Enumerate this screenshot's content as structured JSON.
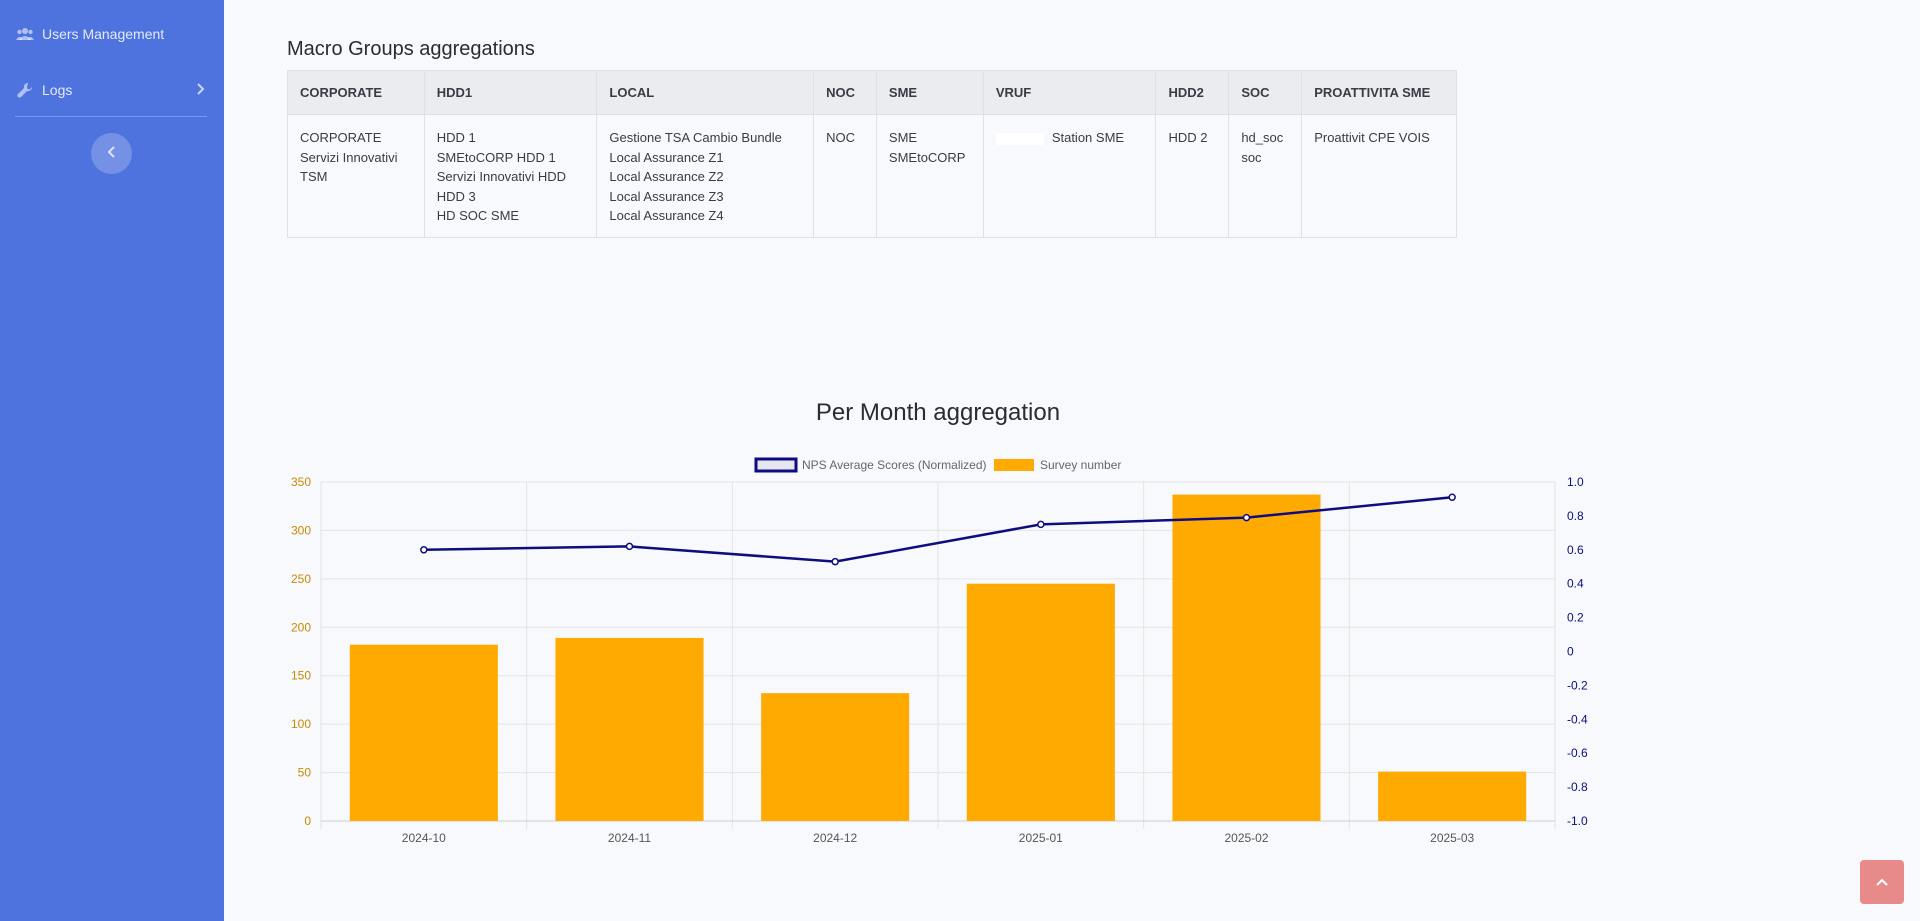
{
  "sidebar": {
    "items": [
      {
        "label": "Users Management",
        "icon": "users-icon"
      },
      {
        "label": "Logs",
        "icon": "wrench-icon"
      }
    ],
    "colors": {
      "background": "#4e73df"
    }
  },
  "macro_groups": {
    "title": "Macro Groups aggregations",
    "columns": [
      "CORPORATE",
      "HDD1",
      "LOCAL",
      "NOC",
      "SME",
      "VRUF",
      "HDD2",
      "SOC",
      "PROATTIVITA SME"
    ],
    "cells": [
      [
        "CORPORATE",
        "Servizi Innovativi",
        "TSM"
      ],
      [
        "HDD 1",
        "SMEtoCORP HDD 1",
        "Servizi Innovativi HDD",
        "HDD 3",
        "HD SOC SME"
      ],
      [
        "Gestione TSA Cambio Bundle",
        "Local Assurance Z1",
        "Local Assurance Z2",
        "Local Assurance Z3",
        "Local Assurance Z4"
      ],
      [
        "NOC"
      ],
      [
        "SME",
        "SMEtoCORP"
      ],
      [
        "Station SME"
      ],
      [
        "HDD 2"
      ],
      [
        "hd_soc",
        "soc"
      ],
      [
        "Proattivit CPE VOIS"
      ]
    ]
  },
  "chart_section": {
    "title": "Per Month aggregation"
  },
  "chart_data": {
    "type": "bar",
    "categories": [
      "2024-10",
      "2024-11",
      "2024-12",
      "2025-01",
      "2025-02",
      "2025-03"
    ],
    "series": [
      {
        "name": "NPS Average Scores (Normalized)",
        "type": "line",
        "axis": "right",
        "color": "#0d0d80",
        "values": [
          0.6,
          0.62,
          0.53,
          0.75,
          0.79,
          0.91
        ]
      },
      {
        "name": "Survey number",
        "type": "bar",
        "axis": "left",
        "color": "#ffaa00",
        "values": [
          182,
          189,
          132,
          245,
          337,
          51
        ]
      }
    ],
    "y_left": {
      "range": [
        0,
        350
      ],
      "ticks": [
        0,
        50,
        100,
        150,
        200,
        250,
        300,
        350
      ],
      "color": "#c98a00"
    },
    "y_right": {
      "range": [
        -1.0,
        1.0
      ],
      "ticks": [
        "1.0",
        "0.8",
        "0.6",
        "0.4",
        "0.2",
        "0",
        "-0.2",
        "-0.4",
        "-0.6",
        "-0.8",
        "-1.0"
      ],
      "color": "#0d0d80"
    },
    "grid": true,
    "legend": "top"
  },
  "scroll_top": {
    "icon": "chevron-up-icon",
    "color": "#e98a8a"
  }
}
